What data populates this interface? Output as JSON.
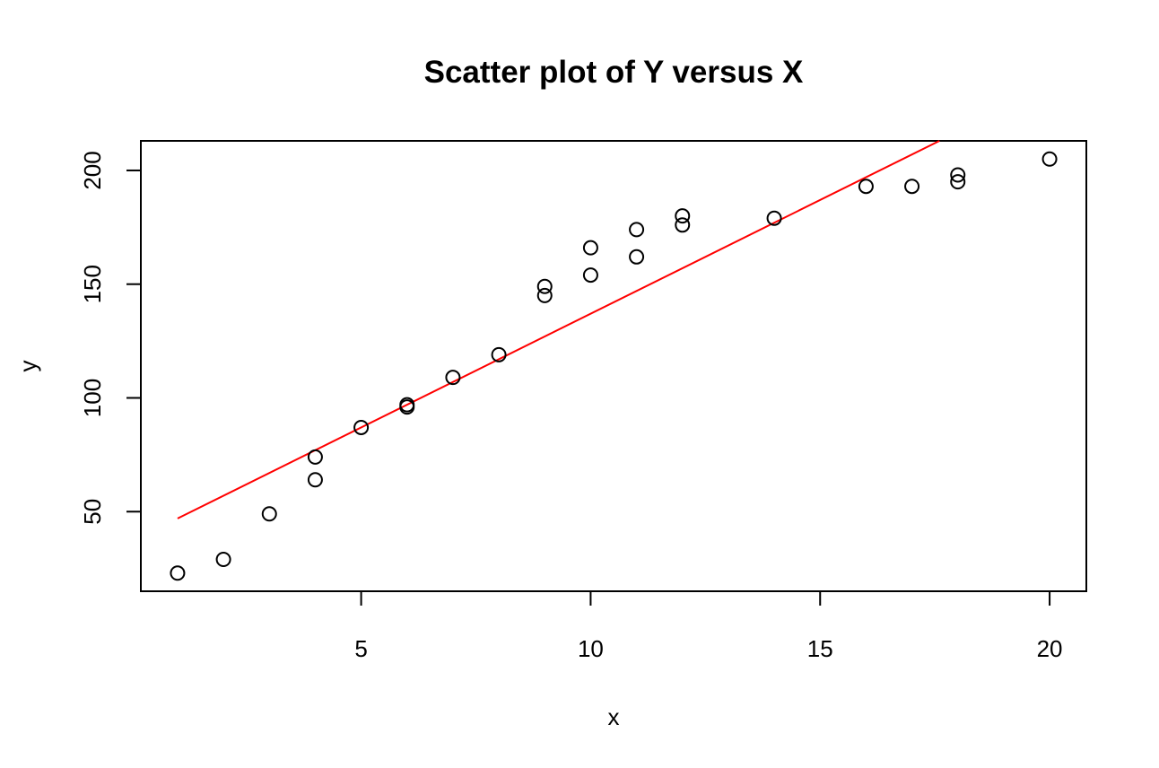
{
  "chart_data": {
    "type": "scatter",
    "title": "Scatter plot of Y versus X",
    "xlabel": "x",
    "ylabel": "y",
    "xlim": [
      0.2,
      20.8
    ],
    "ylim": [
      15,
      213
    ],
    "x_ticks": [
      5,
      10,
      15,
      20
    ],
    "y_ticks": [
      50,
      100,
      150,
      200
    ],
    "grid": false,
    "points": [
      {
        "x": 1,
        "y": 23
      },
      {
        "x": 2,
        "y": 29
      },
      {
        "x": 3,
        "y": 49
      },
      {
        "x": 4,
        "y": 64
      },
      {
        "x": 4,
        "y": 74
      },
      {
        "x": 5,
        "y": 87
      },
      {
        "x": 6,
        "y": 96
      },
      {
        "x": 6,
        "y": 97
      },
      {
        "x": 7,
        "y": 109
      },
      {
        "x": 8,
        "y": 119
      },
      {
        "x": 9,
        "y": 145
      },
      {
        "x": 9,
        "y": 149
      },
      {
        "x": 10,
        "y": 154
      },
      {
        "x": 10,
        "y": 166
      },
      {
        "x": 11,
        "y": 162
      },
      {
        "x": 11,
        "y": 174
      },
      {
        "x": 12,
        "y": 176
      },
      {
        "x": 12,
        "y": 180
      },
      {
        "x": 14,
        "y": 179
      },
      {
        "x": 16,
        "y": 193
      },
      {
        "x": 17,
        "y": 193
      },
      {
        "x": 18,
        "y": 195
      },
      {
        "x": 18,
        "y": 198
      },
      {
        "x": 20,
        "y": 205
      }
    ],
    "fit_line": {
      "color": "#ff0000",
      "x": [
        1,
        17.6
      ],
      "y": [
        47,
        213
      ]
    },
    "point_color": "#000000"
  }
}
